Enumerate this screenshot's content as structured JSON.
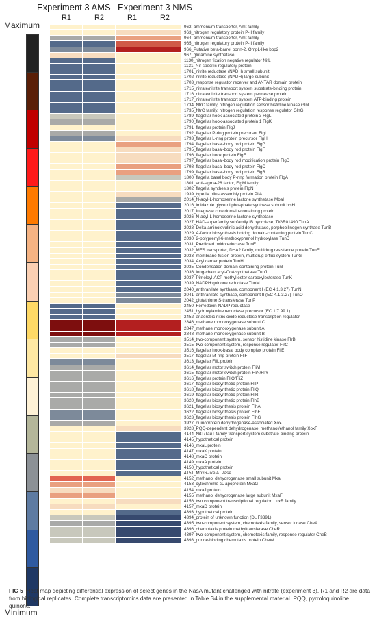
{
  "header": {
    "experiment_ams": "Experiment 3 AMS",
    "experiment_nms": "Experiment 3 NMS",
    "replicates": [
      "R1",
      "R2",
      "R1",
      "R2"
    ]
  },
  "scale": {
    "max_label": "Maximum",
    "min_label": "Minimum",
    "colors": [
      "#222222",
      "#5a1f07",
      "#c00000",
      "#ff1a1a",
      "#ff7a00",
      "#f5b383",
      "#fbd0b3",
      "#ffd966",
      "#ffe8a3",
      "#fff2d6",
      "#b4b69a",
      "#8c9196",
      "#5e7ba2",
      "#2f5aa0",
      "#1f3864"
    ]
  },
  "palette": {
    "1": "#fff2cc",
    "2": "#f7dcbf",
    "3": "#e9a080",
    "4": "#d05a48",
    "5": "#b31f1f",
    "6": "#7d0e0e",
    "7": "#c8c8bc",
    "8": "#a9aaa8",
    "9": "#7d8a9a",
    "10": "#546a8a",
    "11": "#37496e",
    "12": "#e26552"
  },
  "rows": [
    {
      "label": "962_ammonium transporter, Amt family",
      "c": [
        1,
        1,
        1,
        1
      ]
    },
    {
      "label": "963_nitrogen regulatory protein P-II family",
      "c": [
        1,
        1,
        2,
        2
      ]
    },
    {
      "label": "964_ammonium transporter, Amt family",
      "c": [
        8,
        8,
        3,
        3
      ]
    },
    {
      "label": "965_nitrogen regulatory protein P-II family",
      "c": [
        10,
        10,
        4,
        4
      ]
    },
    {
      "label": "966_Putative beta-barrel porin-2, OmpL-like bbp2",
      "c": [
        9,
        9,
        5,
        5
      ]
    },
    {
      "label": "967_glutamine synthetase",
      "c": [
        2,
        2,
        1,
        1
      ]
    },
    {
      "label": "1130_nitrogen fixation negative regulator NifL",
      "c": [
        10,
        10,
        1,
        1
      ]
    },
    {
      "label": "1131_Nif-specific regulatory protein",
      "c": [
        10,
        10,
        1,
        1
      ]
    },
    {
      "label": "1701_nitrite reductase (NADH) small subunit",
      "c": [
        10,
        10,
        1,
        1
      ]
    },
    {
      "label": "1702_nitrite reductase (NADH) large subunit",
      "c": [
        10,
        10,
        1,
        1
      ]
    },
    {
      "label": "1703_response regulator receiver and ANTAR domain protein",
      "c": [
        10,
        10,
        1,
        1
      ]
    },
    {
      "label": "1715_nitrate/nitrite transport system substrate-binding protein",
      "c": [
        10,
        10,
        1,
        1
      ]
    },
    {
      "label": "1716_nitrate/nitrite transport system permease protein",
      "c": [
        10,
        10,
        1,
        1
      ]
    },
    {
      "label": "1717_nitrate/nitrite transport system ATP-binding protein",
      "c": [
        10,
        10,
        1,
        1
      ]
    },
    {
      "label": "1734_NtrC family, nitrogen regulation sensor histidine kinase GlnL",
      "c": [
        10,
        10,
        1,
        1
      ]
    },
    {
      "label": "1735_NtrC family, nitrogen regulation response regulator GlnG",
      "c": [
        10,
        10,
        1,
        1
      ]
    },
    {
      "label": "1789_flagellar hook-associated protein 3 FlgL",
      "c": [
        7,
        7,
        1,
        1
      ]
    },
    {
      "label": "1790_flagellar hook-associated protein 1 FlgK",
      "c": [
        8,
        8,
        1,
        1
      ]
    },
    {
      "label": "1791_flagellar protein FlgJ",
      "c": [
        1,
        1,
        1,
        1
      ]
    },
    {
      "label": "1792_flagellar P-ring protein precursor FlgI",
      "c": [
        8,
        8,
        1,
        1
      ]
    },
    {
      "label": "1793_flagellar L-ring protein precursor FlgH",
      "c": [
        9,
        9,
        2,
        2
      ]
    },
    {
      "label": "1794_flagellar basal-body rod protein FlgG",
      "c": [
        1,
        1,
        3,
        3
      ]
    },
    {
      "label": "1795_flagellar basal-body rod protein FlgF",
      "c": [
        1,
        1,
        2,
        2
      ]
    },
    {
      "label": "1796_flagellar hook protein FlgE",
      "c": [
        1,
        1,
        2,
        2
      ]
    },
    {
      "label": "1797_flagellar basal-body rod modification protein FlgD",
      "c": [
        1,
        1,
        2,
        2
      ]
    },
    {
      "label": "1798_flagellar basal-body rod protein FlgC",
      "c": [
        1,
        1,
        3,
        3
      ]
    },
    {
      "label": "1799_flagellar basal-body rod protein FlgB",
      "c": [
        1,
        1,
        3,
        3
      ]
    },
    {
      "label": "1800_flagella basal body P-ring formation protein FlgA",
      "c": [
        1,
        1,
        7,
        7
      ]
    },
    {
      "label": "1801_anti-sigma-28 factor, FlgM family",
      "c": [
        1,
        1,
        1,
        1
      ]
    },
    {
      "label": "1802_flagella synthesis protein FlgN",
      "c": [
        1,
        1,
        1,
        1
      ]
    },
    {
      "label": "1939_type IV pilus assembly protein PilA",
      "c": [
        1,
        1,
        2,
        2
      ]
    },
    {
      "label": "2014_N-acyl-L-homoserine lactone synthetase MbaI",
      "c": [
        1,
        1,
        8,
        8
      ]
    },
    {
      "label": "2016_imidazole glycerol phosphate synthase subunit hisH",
      "c": [
        1,
        1,
        10,
        10
      ]
    },
    {
      "label": "2017_Integrase core domain-containing protein",
      "c": [
        1,
        1,
        10,
        10
      ]
    },
    {
      "label": "2026_N-acyl-L-homoserine lactone synthetase",
      "c": [
        1,
        1,
        10,
        10
      ]
    },
    {
      "label": "2027_HAD-superfamily subfamily IB hydrolase, TIGR01490 TunA",
      "c": [
        1,
        1,
        10,
        10
      ]
    },
    {
      "label": "2028_Delta-aminolevulinic acid dehydratase, porphobilinogen synthase TunB",
      "c": [
        1,
        1,
        10,
        10
      ]
    },
    {
      "label": "2029_A-factor biosynthesis hotdog domain-containing protein TunC",
      "c": [
        1,
        1,
        10,
        10
      ]
    },
    {
      "label": "2030_2-polyprenyl-6-methoxyphenol hydroxylase TunD",
      "c": [
        1,
        1,
        10,
        10
      ]
    },
    {
      "label": "2031_Predicted oxidoreductase TunE",
      "c": [
        1,
        1,
        10,
        10
      ]
    },
    {
      "label": "2032_MFS transporter, DHA2 family, multidrug resistance protein TunF",
      "c": [
        1,
        1,
        10,
        10
      ]
    },
    {
      "label": "2033_membrane fusion protein, multidrug efflux system TunG",
      "c": [
        1,
        1,
        10,
        10
      ]
    },
    {
      "label": "2034_Acyl carrier protein TunH",
      "c": [
        1,
        1,
        10,
        10
      ]
    },
    {
      "label": "2035_Condensation domain-containing protein TunI",
      "c": [
        1,
        1,
        10,
        10
      ]
    },
    {
      "label": "2036_long-chain acyl-CoA synthetase TunJ",
      "c": [
        1,
        1,
        10,
        10
      ]
    },
    {
      "label": "2037_Pimeloyl-ACP methyl ester carboxylesterase TunK",
      "c": [
        1,
        1,
        10,
        10
      ]
    },
    {
      "label": "2039_NADPH:quinone reductase TunM",
      "c": [
        1,
        1,
        10,
        10
      ]
    },
    {
      "label": "2040_anthranilate synthase, component I (EC 4.1.3.27) TunN",
      "c": [
        1,
        1,
        10,
        10
      ]
    },
    {
      "label": "2041_anthranilate synthase, component II (EC 4.1.3.27) TunO",
      "c": [
        1,
        1,
        9,
        9
      ]
    },
    {
      "label": "2042_glutathione S-transferase TunP",
      "c": [
        1,
        1,
        9,
        9
      ]
    },
    {
      "label": "2450_Ferredoxin-NADP reductase",
      "c": [
        10,
        10,
        1,
        1
      ]
    },
    {
      "label": "2451_hydroxylamine reductase precursor (EC 1.7.99.1)",
      "c": [
        10,
        10,
        1,
        1
      ]
    },
    {
      "label": "2452_anaerobic nitric oxide reductase transcription regulator",
      "c": [
        10,
        10,
        1,
        1
      ]
    },
    {
      "label": "2846_methane monooxygenase subunit C",
      "c": [
        6,
        6,
        5,
        5
      ]
    },
    {
      "label": "2847_methane monooxygenase subunit A",
      "c": [
        6,
        6,
        5,
        5
      ]
    },
    {
      "label": "2848_methane monooxygenase subunit B",
      "c": [
        6,
        6,
        5,
        5
      ]
    },
    {
      "label": "3514_two-component system, sensor histidine kinase FlrB",
      "c": [
        8,
        8,
        1,
        1
      ]
    },
    {
      "label": "3515_two-component system, response regulator FlrC",
      "c": [
        8,
        8,
        1,
        1
      ]
    },
    {
      "label": "3516_flagellar hook-basal body complex protein FliE",
      "c": [
        1,
        1,
        1,
        1
      ]
    },
    {
      "label": "3517_flagellar M-ring protein FliF",
      "c": [
        1,
        1,
        2,
        2
      ]
    },
    {
      "label": "3613_flagellar FliL protein",
      "c": [
        9,
        9,
        1,
        1
      ]
    },
    {
      "label": "3614_flagellar motor switch protein FliM",
      "c": [
        8,
        8,
        1,
        1
      ]
    },
    {
      "label": "3615_flagellar motor switch protein FliN/FliY",
      "c": [
        8,
        8,
        1,
        1
      ]
    },
    {
      "label": "3616_flagellar protein FliO/FliZ",
      "c": [
        8,
        8,
        1,
        1
      ]
    },
    {
      "label": "3617_flagellar biosynthetic protein FliP",
      "c": [
        8,
        8,
        1,
        1
      ]
    },
    {
      "label": "3618_flagellar biosynthetic protein FliQ",
      "c": [
        8,
        8,
        1,
        1
      ]
    },
    {
      "label": "3619_flagellar biosynthetic protein FliR",
      "c": [
        8,
        8,
        1,
        1
      ]
    },
    {
      "label": "3620_flagellar biosynthetic protein FlhB",
      "c": [
        8,
        8,
        1,
        1
      ]
    },
    {
      "label": "3621_flagellar biosynthesis protein FlhA",
      "c": [
        8,
        8,
        1,
        1
      ]
    },
    {
      "label": "3622_flagellar biosynthesis protein FlhF",
      "c": [
        9,
        9,
        1,
        1
      ]
    },
    {
      "label": "3623_flagellar biosynthesis protein FlhG",
      "c": [
        9,
        9,
        1,
        1
      ]
    },
    {
      "label": "3927_quinoprotein dehydrogenase-associated XoxJ",
      "c": [
        8,
        8,
        1,
        1
      ]
    },
    {
      "label": "3928_PQQ-dependent dehydrogenase, methanol/ethanol family XoxF",
      "c": [
        1,
        1,
        2,
        2
      ]
    },
    {
      "label": "4144_NitT/TauT family transport system substrate-binding protein",
      "c": [
        1,
        1,
        10,
        10
      ]
    },
    {
      "label": "4145_hypothetical protein",
      "c": [
        1,
        1,
        10,
        10
      ]
    },
    {
      "label": "4146_mxaL protein",
      "c": [
        1,
        1,
        10,
        10
      ]
    },
    {
      "label": "4147_mxaK protein",
      "c": [
        1,
        1,
        10,
        10
      ]
    },
    {
      "label": "4148_mxaC protein",
      "c": [
        1,
        1,
        10,
        10
      ]
    },
    {
      "label": "4149_mxaA protein",
      "c": [
        1,
        1,
        10,
        10
      ]
    },
    {
      "label": "4150_hypothetical protein",
      "c": [
        1,
        1,
        10,
        10
      ]
    },
    {
      "label": "4151_MoxR-like ATPase",
      "c": [
        1,
        1,
        10,
        10
      ]
    },
    {
      "label": "4152_methanol dehydrogenase small subunit MxaI",
      "c": [
        12,
        12,
        1,
        1
      ]
    },
    {
      "label": "4153_cytochrome cL apoprotein MxaG",
      "c": [
        3,
        3,
        1,
        1
      ]
    },
    {
      "label": "4154_mxaJ protein",
      "c": [
        2,
        2,
        1,
        1
      ]
    },
    {
      "label": "4155_methanol dehydrogenase large subunit MxaF",
      "c": [
        3,
        3,
        1,
        1
      ]
    },
    {
      "label": "4156_two component transcriptional regulator, LuxR family",
      "c": [
        1,
        1,
        2,
        2
      ]
    },
    {
      "label": "4157_mxaD protein",
      "c": [
        2,
        2,
        1,
        1
      ]
    },
    {
      "label": "4393_hypothetical protein",
      "c": [
        1,
        1,
        10,
        10
      ]
    },
    {
      "label": "4394_protein of unknown function (DUF3391)",
      "c": [
        7,
        7,
        11,
        11
      ]
    },
    {
      "label": "4395_two-component system, chemotaxis family, sensor kinase CheA",
      "c": [
        8,
        8,
        11,
        11
      ]
    },
    {
      "label": "4396_chemotaxis protein methyltransferase CheR",
      "c": [
        7,
        7,
        11,
        11
      ]
    },
    {
      "label": "4397_two-component system, chemotaxis family, response regulator CheB",
      "c": [
        7,
        7,
        11,
        11
      ]
    },
    {
      "label": "4398_purine-binding chemotaxis protein CheW",
      "c": [
        7,
        7,
        11,
        11
      ]
    }
  ],
  "caption": {
    "fig_label": "FIG 5",
    "text": "Heat map depicting differential expression of select genes in the NasA mutant challenged with nitrate (experiment 3). R1 and R2 are data from biological replicates. Complete transcriptomics data are presented in Table S4 in the supplemental material. PQQ, pyrroloquinoline quinone."
  }
}
